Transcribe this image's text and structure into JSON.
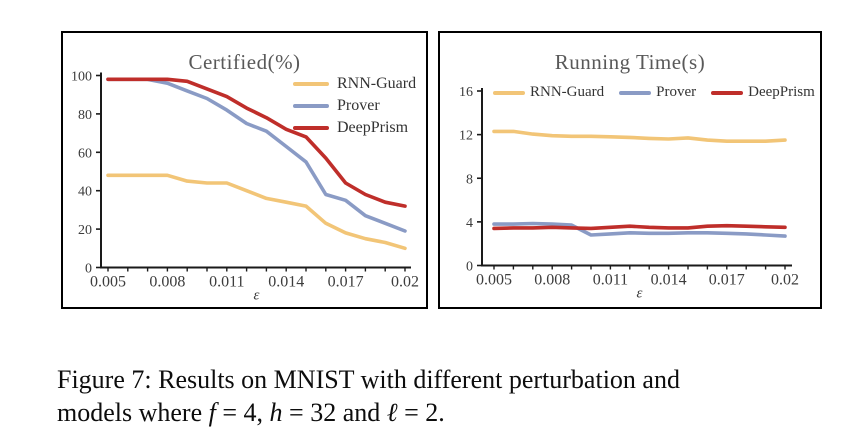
{
  "figure": {
    "caption_lines": [
      [
        {
          "t": "Figure 7: Results on MNIST with different perturbation and",
          "i": false
        }
      ],
      [
        {
          "t": "models where ",
          "i": false
        },
        {
          "t": "f",
          "i": true
        },
        {
          "t": " = 4, ",
          "i": false
        },
        {
          "t": "h",
          "i": true
        },
        {
          "t": " = 32 and ",
          "i": false
        },
        {
          "t": "ℓ",
          "i": true
        },
        {
          "t": " = 2.",
          "i": false
        }
      ]
    ]
  },
  "colors": {
    "rnn_guard": "#F2C577",
    "prover": "#8A9BC5",
    "deepprism": "#BF2E2A",
    "title_text": "#595959",
    "tick_text": "#3c3c3c",
    "axis_line": "#1a1a1a"
  },
  "chart_data": [
    {
      "type": "line",
      "title": "Certified(%)",
      "xlabel": "ε",
      "x": [
        0.005,
        0.006,
        0.007,
        0.008,
        0.009,
        0.01,
        0.011,
        0.012,
        0.013,
        0.014,
        0.015,
        0.016,
        0.017,
        0.018,
        0.019,
        0.02
      ],
      "xtick_labels": [
        "0.005",
        "0.008",
        "0.011",
        "0.014",
        "0.017",
        "0.02"
      ],
      "xtick_label_step": 3,
      "ylim": [
        0,
        100
      ],
      "yticks": [
        0,
        20,
        40,
        60,
        80,
        100
      ],
      "grid": false,
      "legend_position": "top-right-vertical",
      "series": [
        {
          "name": "RNN-Guard",
          "color": "#F2C577",
          "values": [
            48,
            48,
            48,
            48,
            45,
            44,
            44,
            40,
            36,
            34,
            32,
            23,
            18,
            15,
            13,
            10
          ]
        },
        {
          "name": "Prover",
          "color": "#8A9BC5",
          "values": [
            98,
            98,
            98,
            96,
            92,
            88,
            82,
            75,
            71,
            63,
            55,
            38,
            35,
            27,
            23,
            19
          ]
        },
        {
          "name": "DeepPrism",
          "color": "#BF2E2A",
          "values": [
            98,
            98,
            98,
            98,
            97,
            93,
            89,
            83,
            78,
            72,
            68,
            57,
            44,
            38,
            34,
            32
          ]
        }
      ]
    },
    {
      "type": "line",
      "title": "Running Time(s)",
      "xlabel": "ε",
      "x": [
        0.005,
        0.006,
        0.007,
        0.008,
        0.009,
        0.01,
        0.011,
        0.012,
        0.013,
        0.014,
        0.015,
        0.016,
        0.017,
        0.018,
        0.019,
        0.02
      ],
      "xtick_labels": [
        "0.005",
        "0.008",
        "0.011",
        "0.014",
        "0.017",
        "0.02"
      ],
      "xtick_label_step": 3,
      "ylim": [
        0,
        16
      ],
      "yticks": [
        0,
        4,
        8,
        12,
        16
      ],
      "grid": false,
      "legend_position": "top-horizontal",
      "series": [
        {
          "name": "RNN-Guard",
          "color": "#F2C577",
          "values": [
            12.3,
            12.3,
            12.05,
            11.9,
            11.85,
            11.85,
            11.8,
            11.75,
            11.65,
            11.6,
            11.7,
            11.5,
            11.4,
            11.4,
            11.4,
            11.5
          ]
        },
        {
          "name": "Prover",
          "color": "#8A9BC5",
          "values": [
            3.8,
            3.8,
            3.85,
            3.8,
            3.7,
            2.8,
            2.9,
            3.0,
            2.95,
            2.95,
            3.0,
            3.0,
            2.95,
            2.9,
            2.8,
            2.7
          ]
        },
        {
          "name": "DeepPrism",
          "color": "#BF2E2A",
          "values": [
            3.4,
            3.45,
            3.45,
            3.5,
            3.45,
            3.4,
            3.5,
            3.6,
            3.5,
            3.45,
            3.45,
            3.6,
            3.65,
            3.6,
            3.55,
            3.5
          ]
        }
      ]
    }
  ]
}
